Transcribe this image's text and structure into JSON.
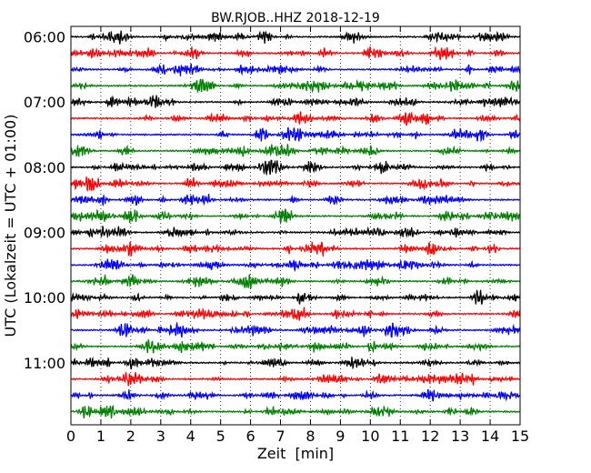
{
  "chart_data": {
    "type": "line",
    "title": "BW.RJOB..HHZ 2018-12-19",
    "xlabel": "Zeit  [min]",
    "ylabel": "UTC (Lokalzeit = UTC + 01:00)",
    "xlim": [
      0,
      15
    ],
    "x_ticks": [
      "0",
      "1",
      "2",
      "3",
      "4",
      "5",
      "6",
      "7",
      "8",
      "9",
      "10",
      "11",
      "12",
      "13",
      "14",
      "15"
    ],
    "y_ticks": [
      "06:00",
      "07:00",
      "08:00",
      "09:00",
      "10:00",
      "11:00"
    ],
    "grid": "vertical dotted",
    "trace_colors": [
      "#000000",
      "#ff0000",
      "#0000ff",
      "#008000"
    ],
    "traces_per_hour": 4,
    "trace_start_times": [
      "06:00",
      "06:15",
      "06:30",
      "06:45",
      "07:00",
      "07:15",
      "07:30",
      "07:45",
      "08:00",
      "08:15",
      "08:30",
      "08:45",
      "09:00",
      "09:15",
      "09:30",
      "09:45",
      "10:00",
      "10:15",
      "10:30",
      "10:45",
      "11:00",
      "11:15",
      "11:30",
      "11:45"
    ]
  }
}
